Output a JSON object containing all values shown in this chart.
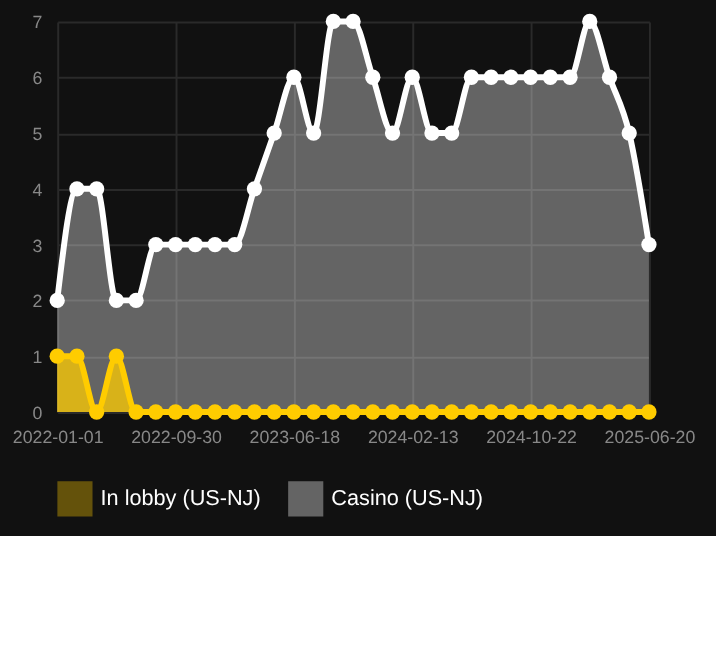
{
  "chart_data": {
    "type": "area",
    "categories": [
      "2022-01-01",
      null,
      null,
      null,
      null,
      null,
      "2022-09-30",
      null,
      null,
      null,
      null,
      null,
      "2023-06-18",
      null,
      null,
      null,
      null,
      null,
      "2024-02-13",
      null,
      null,
      null,
      null,
      null,
      "2024-10-22",
      null,
      null,
      null,
      null,
      null,
      "2025-06-20"
    ],
    "series": [
      {
        "name": "In lobby (US-NJ)",
        "color": "#ffcc00",
        "values": [
          1,
          1,
          0,
          1,
          0,
          0,
          0,
          0,
          0,
          0,
          0,
          0,
          0,
          0,
          0,
          0,
          0,
          0,
          0,
          0,
          0,
          0,
          0,
          0,
          0,
          0,
          0,
          0,
          0,
          0,
          0
        ]
      },
      {
        "name": "Casino (US-NJ)",
        "color": "#ffffff",
        "values": [
          2,
          4,
          4,
          2,
          2,
          3,
          3,
          3,
          3,
          3,
          4,
          5,
          6,
          5,
          7,
          7,
          6,
          5,
          6,
          5,
          5,
          6,
          6,
          6,
          6,
          6,
          6,
          7,
          6,
          5,
          3
        ]
      }
    ],
    "ylim": [
      0,
      7
    ],
    "yticks": [
      0,
      1,
      2,
      3,
      4,
      5,
      6,
      7
    ],
    "grid": true,
    "legend": "bottom",
    "marker": "circle",
    "line_style": "solid"
  }
}
